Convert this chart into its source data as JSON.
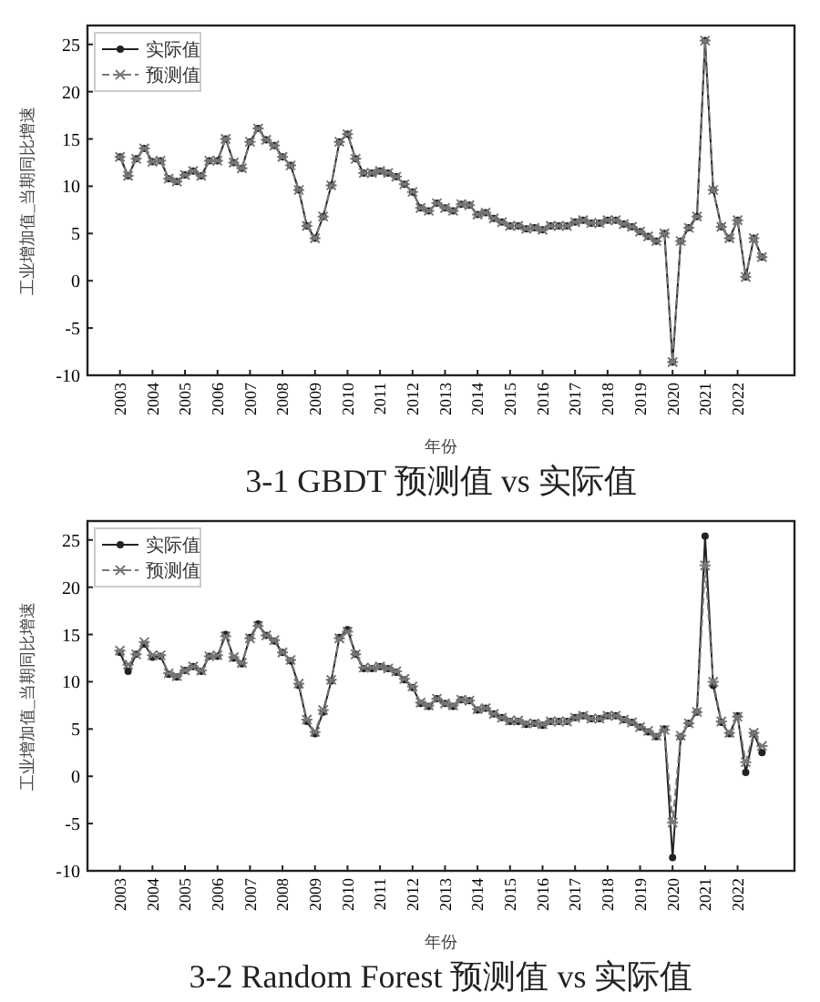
{
  "chart_data": [
    {
      "type": "line",
      "title": "3-1    GBDT 预测值 vs 实际值",
      "xlabel": "年份",
      "ylabel": "工业增加值_当期同比增速",
      "xlim": [
        2002,
        2023.75
      ],
      "xticks": [
        2003,
        2004,
        2005,
        2006,
        2007,
        2008,
        2009,
        2010,
        2011,
        2012,
        2013,
        2014,
        2015,
        2016,
        2017,
        2018,
        2019,
        2020,
        2021,
        2022
      ],
      "ylim": [
        -10,
        27
      ],
      "yticks": [
        -10,
        -5,
        0,
        5,
        10,
        15,
        20,
        25
      ],
      "grid": false,
      "legend": "top left",
      "x": [
        2003,
        2003.25,
        2003.5,
        2003.75,
        2004,
        2004.25,
        2004.5,
        2004.75,
        2005,
        2005.25,
        2005.5,
        2005.75,
        2006,
        2006.25,
        2006.5,
        2006.75,
        2007,
        2007.25,
        2007.5,
        2007.75,
        2008,
        2008.25,
        2008.5,
        2008.75,
        2009,
        2009.25,
        2009.5,
        2009.75,
        2010,
        2010.25,
        2010.5,
        2010.75,
        2011,
        2011.25,
        2011.5,
        2011.75,
        2012,
        2012.25,
        2012.5,
        2012.75,
        2013,
        2013.25,
        2013.5,
        2013.75,
        2014,
        2014.25,
        2014.5,
        2014.75,
        2015,
        2015.25,
        2015.5,
        2015.75,
        2016,
        2016.25,
        2016.5,
        2016.75,
        2017,
        2017.25,
        2017.5,
        2017.75,
        2018,
        2018.25,
        2018.5,
        2018.75,
        2019,
        2019.25,
        2019.5,
        2019.75,
        2020,
        2020.25,
        2020.5,
        2020.75,
        2021,
        2021.25,
        2021.5,
        2021.75,
        2022,
        2022.25,
        2022.5,
        2022.75
      ],
      "series": [
        {
          "name": "实际值",
          "color": "#222222",
          "marker": "circle",
          "line_style": "solid",
          "values": [
            13.1,
            11.1,
            12.9,
            14.0,
            12.6,
            12.7,
            10.8,
            10.5,
            11.2,
            11.6,
            11.1,
            12.7,
            12.7,
            15.0,
            12.5,
            11.9,
            14.7,
            16.1,
            14.9,
            14.3,
            13.1,
            12.2,
            9.6,
            5.8,
            4.5,
            6.8,
            10.1,
            14.7,
            15.5,
            12.9,
            11.4,
            11.4,
            11.6,
            11.4,
            11.0,
            10.2,
            9.4,
            7.7,
            7.4,
            8.2,
            7.7,
            7.4,
            8.1,
            8.0,
            7.0,
            7.2,
            6.6,
            6.2,
            5.8,
            5.8,
            5.5,
            5.6,
            5.4,
            5.8,
            5.8,
            5.8,
            6.2,
            6.4,
            6.1,
            6.1,
            6.4,
            6.4,
            6.0,
            5.7,
            5.2,
            4.7,
            4.2,
            5.0,
            -8.6,
            4.2,
            5.6,
            6.8,
            25.4,
            9.6,
            5.7,
            4.5,
            6.4,
            0.4,
            4.5,
            2.5
          ]
        },
        {
          "name": "预测值",
          "color": "#777777",
          "marker": "cross",
          "line_style": "dashed",
          "values": [
            13.1,
            11.1,
            12.9,
            14.0,
            12.6,
            12.7,
            10.8,
            10.5,
            11.2,
            11.6,
            11.1,
            12.7,
            12.7,
            15.0,
            12.5,
            11.9,
            14.7,
            16.1,
            14.9,
            14.3,
            13.1,
            12.2,
            9.6,
            5.8,
            4.5,
            6.8,
            10.1,
            14.7,
            15.5,
            12.9,
            11.4,
            11.4,
            11.6,
            11.4,
            11.0,
            10.2,
            9.4,
            7.7,
            7.4,
            8.2,
            7.7,
            7.4,
            8.1,
            8.0,
            7.0,
            7.2,
            6.6,
            6.2,
            5.8,
            5.8,
            5.5,
            5.6,
            5.4,
            5.8,
            5.8,
            5.8,
            6.2,
            6.4,
            6.1,
            6.1,
            6.4,
            6.4,
            6.0,
            5.7,
            5.2,
            4.7,
            4.2,
            5.0,
            -8.6,
            4.2,
            5.6,
            6.8,
            25.4,
            9.6,
            5.7,
            4.5,
            6.4,
            0.4,
            4.5,
            2.5
          ]
        }
      ]
    },
    {
      "type": "line",
      "title": "3-2    Random Forest 预测值 vs 实际值",
      "xlabel": "年份",
      "ylabel": "工业增加值_当期同比增速",
      "xlim": [
        2002,
        2023.75
      ],
      "xticks": [
        2003,
        2004,
        2005,
        2006,
        2007,
        2008,
        2009,
        2010,
        2011,
        2012,
        2013,
        2014,
        2015,
        2016,
        2017,
        2018,
        2019,
        2020,
        2021,
        2022
      ],
      "ylim": [
        -10,
        27
      ],
      "yticks": [
        -10,
        -5,
        0,
        5,
        10,
        15,
        20,
        25
      ],
      "grid": false,
      "legend": "top left",
      "x": [
        2003,
        2003.25,
        2003.5,
        2003.75,
        2004,
        2004.25,
        2004.5,
        2004.75,
        2005,
        2005.25,
        2005.5,
        2005.75,
        2006,
        2006.25,
        2006.5,
        2006.75,
        2007,
        2007.25,
        2007.5,
        2007.75,
        2008,
        2008.25,
        2008.5,
        2008.75,
        2009,
        2009.25,
        2009.5,
        2009.75,
        2010,
        2010.25,
        2010.5,
        2010.75,
        2011,
        2011.25,
        2011.5,
        2011.75,
        2012,
        2012.25,
        2012.5,
        2012.75,
        2013,
        2013.25,
        2013.5,
        2013.75,
        2014,
        2014.25,
        2014.5,
        2014.75,
        2015,
        2015.25,
        2015.5,
        2015.75,
        2016,
        2016.25,
        2016.5,
        2016.75,
        2017,
        2017.25,
        2017.5,
        2017.75,
        2018,
        2018.25,
        2018.5,
        2018.75,
        2019,
        2019.25,
        2019.5,
        2019.75,
        2020,
        2020.25,
        2020.5,
        2020.75,
        2021,
        2021.25,
        2021.5,
        2021.75,
        2022,
        2022.25,
        2022.5,
        2022.75
      ],
      "series": [
        {
          "name": "实际值",
          "color": "#222222",
          "marker": "circle",
          "line_style": "solid",
          "values": [
            13.1,
            11.1,
            12.9,
            14.0,
            12.6,
            12.7,
            10.8,
            10.5,
            11.2,
            11.6,
            11.1,
            12.7,
            12.7,
            15.0,
            12.5,
            11.9,
            14.7,
            16.1,
            14.9,
            14.3,
            13.1,
            12.2,
            9.6,
            5.8,
            4.5,
            6.8,
            10.1,
            14.7,
            15.5,
            12.9,
            11.4,
            11.4,
            11.6,
            11.4,
            11.0,
            10.2,
            9.4,
            7.7,
            7.4,
            8.2,
            7.7,
            7.4,
            8.1,
            8.0,
            7.0,
            7.2,
            6.6,
            6.2,
            5.8,
            5.8,
            5.5,
            5.6,
            5.4,
            5.8,
            5.8,
            5.8,
            6.2,
            6.4,
            6.1,
            6.1,
            6.4,
            6.4,
            6.0,
            5.7,
            5.2,
            4.7,
            4.2,
            5.0,
            -8.6,
            4.2,
            5.6,
            6.8,
            25.4,
            9.6,
            5.7,
            4.5,
            6.4,
            0.4,
            4.5,
            2.5
          ]
        },
        {
          "name": "预测值",
          "color": "#777777",
          "marker": "cross",
          "line_style": "dashed",
          "values": [
            13.3,
            11.8,
            12.9,
            14.2,
            12.8,
            12.8,
            10.9,
            10.6,
            11.2,
            11.6,
            11.2,
            12.7,
            12.8,
            14.8,
            12.6,
            12.0,
            14.6,
            15.9,
            14.9,
            14.4,
            13.1,
            12.3,
            9.8,
            6.0,
            4.7,
            7.0,
            10.2,
            14.6,
            15.3,
            12.9,
            11.5,
            11.5,
            11.6,
            11.4,
            11.1,
            10.3,
            9.5,
            7.8,
            7.5,
            8.2,
            7.7,
            7.5,
            8.1,
            8.0,
            7.1,
            7.2,
            6.6,
            6.2,
            5.9,
            5.9,
            5.6,
            5.6,
            5.5,
            5.8,
            5.8,
            5.8,
            6.2,
            6.4,
            6.1,
            6.1,
            6.4,
            6.4,
            6.0,
            5.7,
            5.2,
            4.8,
            4.3,
            4.9,
            -4.9,
            4.3,
            5.6,
            6.8,
            22.3,
            10.0,
            5.8,
            4.6,
            6.3,
            1.5,
            4.6,
            3.2
          ]
        }
      ]
    }
  ]
}
